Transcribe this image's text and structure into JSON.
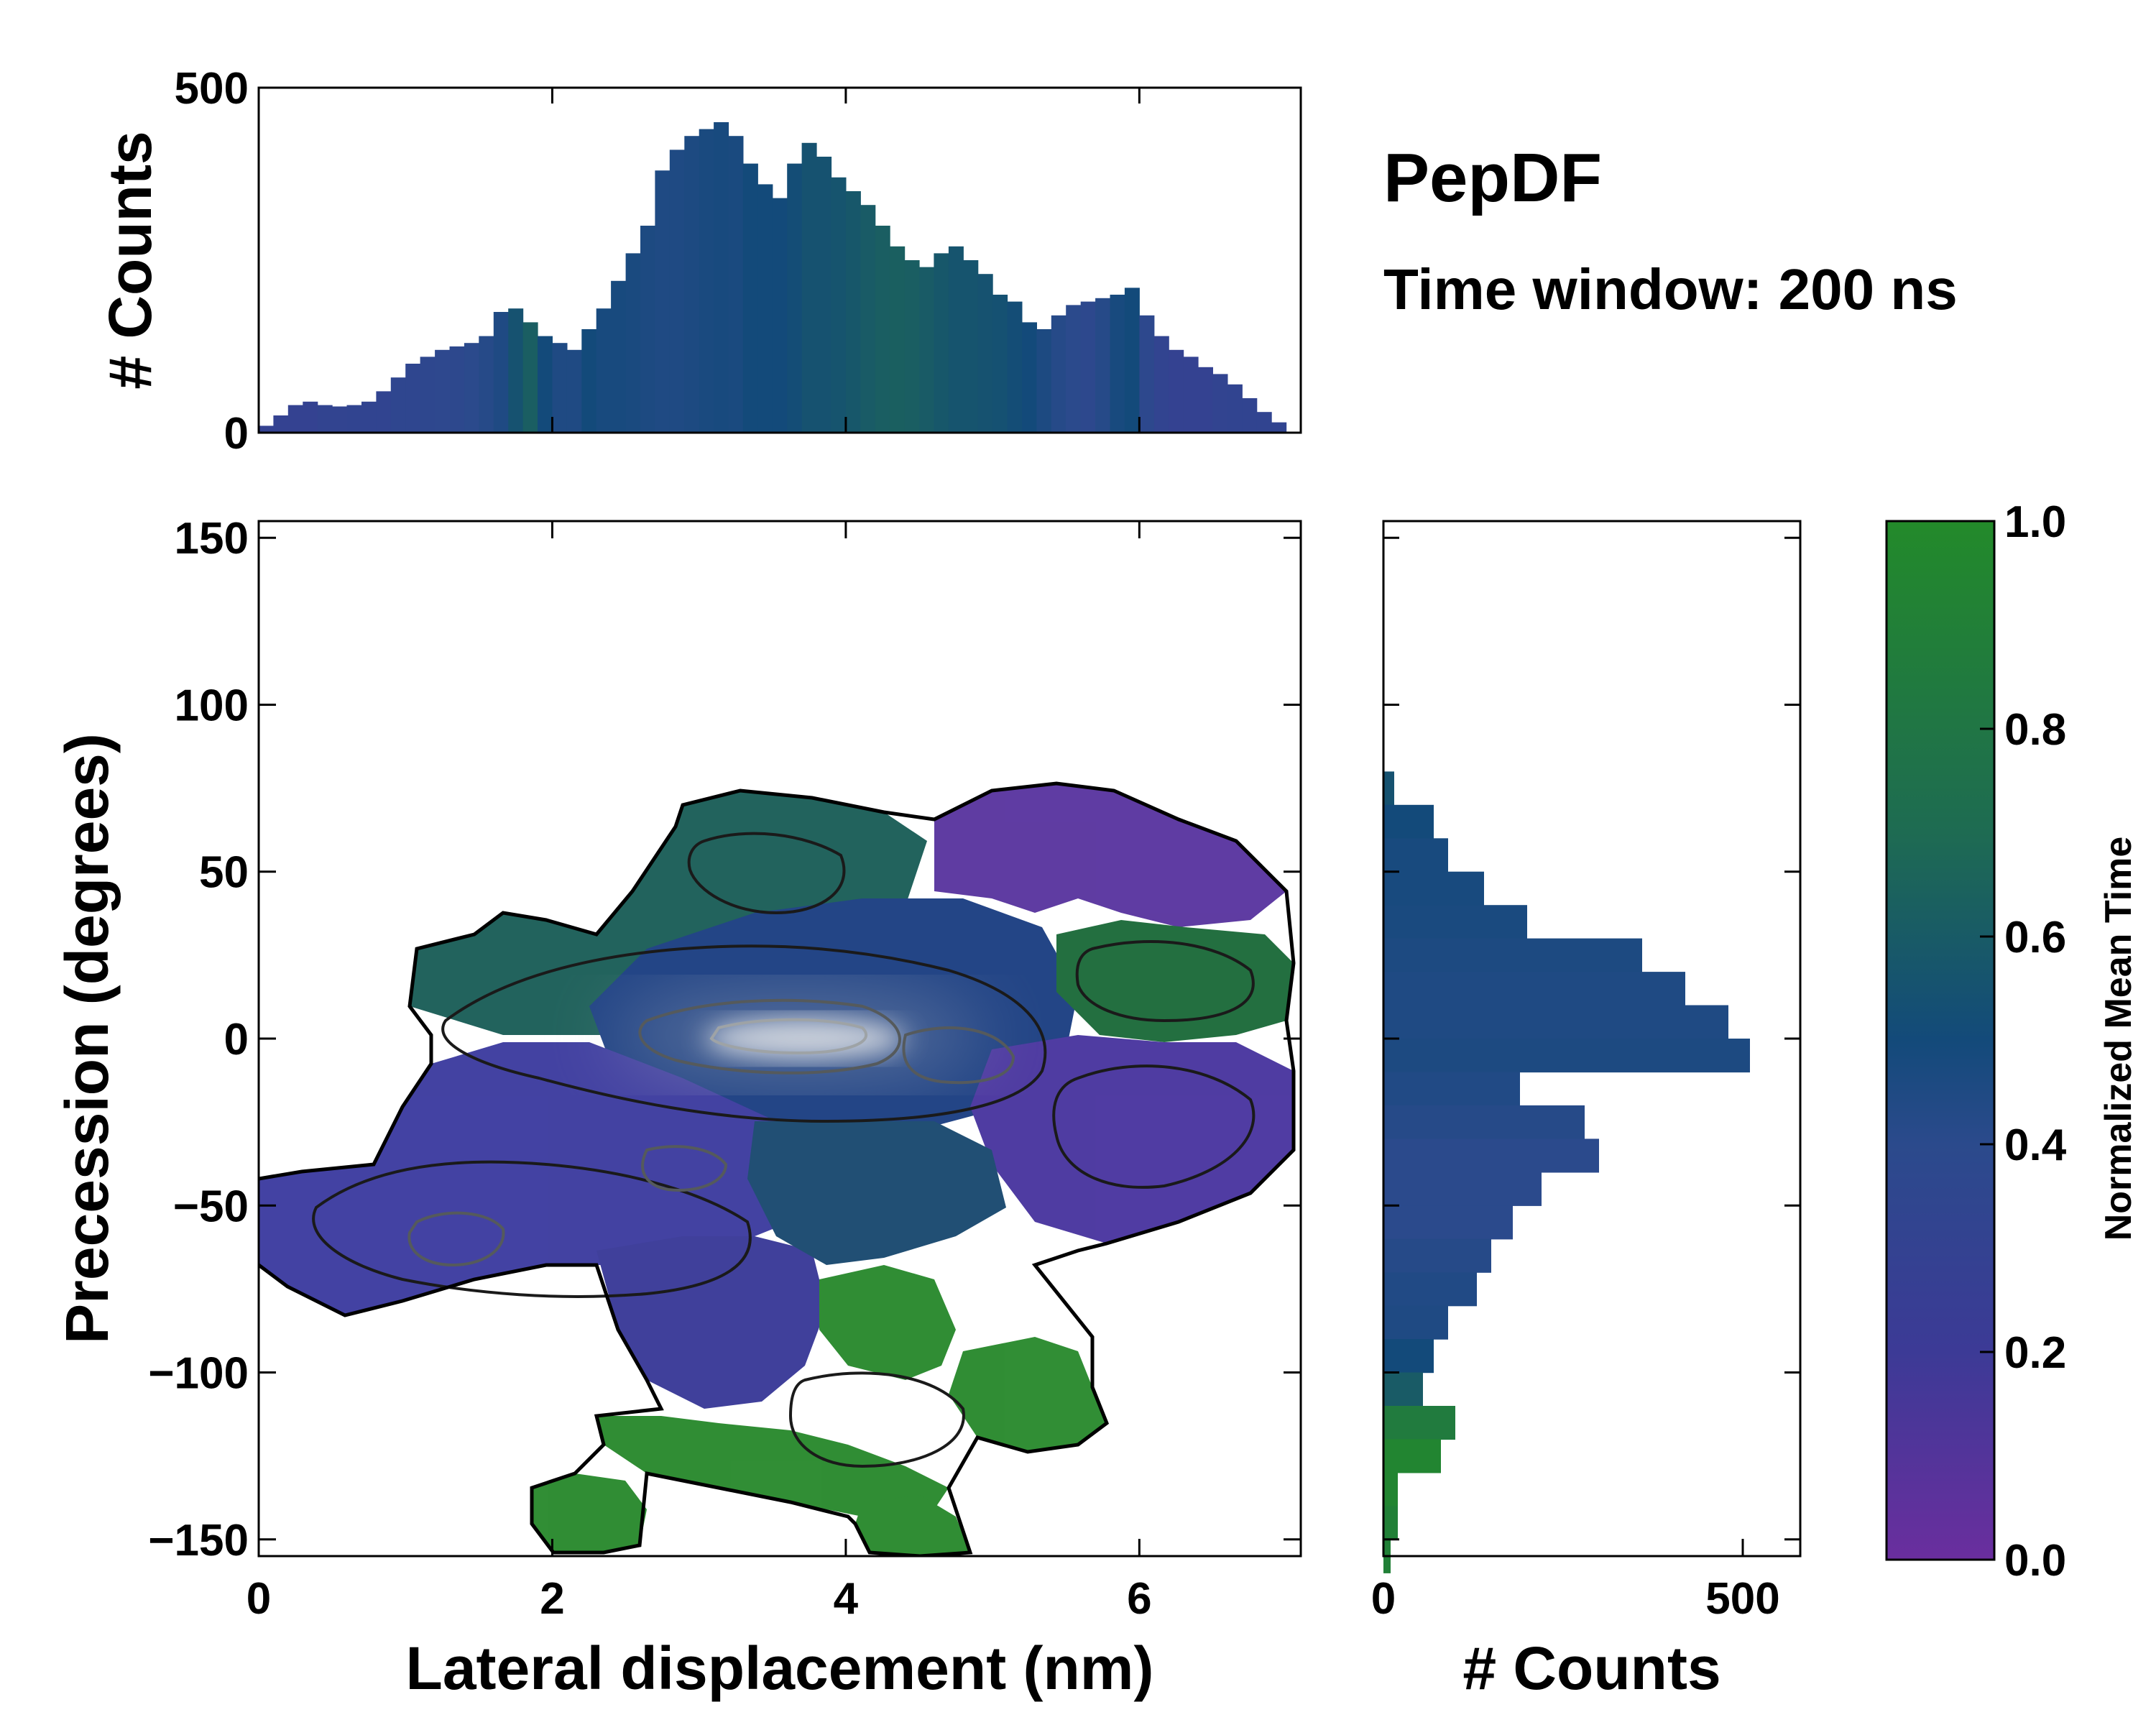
{
  "chart_data": {
    "type": "heatmap",
    "title": "PepDF",
    "subtitle": "Time window: 200 ns",
    "main": {
      "xlabel": "Lateral displacement (nm)",
      "ylabel": "Precession (degrees)",
      "xlim": [
        0,
        7.1
      ],
      "ylim": [
        -155,
        155
      ],
      "xticks": [
        0,
        2,
        4,
        6
      ],
      "xtick_labels": [
        "0",
        "2",
        "4",
        "6"
      ],
      "yticks": [
        150,
        100,
        50,
        0,
        -50,
        -100,
        -150
      ],
      "ytick_labels": [
        "150",
        "100",
        "50",
        "0",
        "−50",
        "−100",
        "−150"
      ],
      "grid": false,
      "regions": [
        {
          "name": "upper-left-green-lobe",
          "x": [
            0.7,
            3.2
          ],
          "y": [
            15,
            65
          ],
          "mean_time": 0.62
        },
        {
          "name": "central-blue-band",
          "x": [
            2.8,
            5.5
          ],
          "y": [
            -25,
            40
          ],
          "mean_time": 0.45
        },
        {
          "name": "upper-right-purple-lobe",
          "x": [
            4.6,
            7.0
          ],
          "y": [
            35,
            75
          ],
          "mean_time": 0.12
        },
        {
          "name": "right-green-patch",
          "x": [
            5.4,
            7.0
          ],
          "y": [
            0,
            35
          ],
          "mean_time": 0.85
        },
        {
          "name": "right-purple-region",
          "x": [
            5.0,
            7.0
          ],
          "y": [
            -60,
            0
          ],
          "mean_time": 0.15
        },
        {
          "name": "left-purple-region",
          "x": [
            0.0,
            3.0
          ],
          "y": [
            -90,
            -20
          ],
          "mean_time": 0.28
        },
        {
          "name": "lower-center-purple",
          "x": [
            2.8,
            4.0
          ],
          "y": [
            -110,
            -40
          ],
          "mean_time": 0.22
        },
        {
          "name": "lower-green-lobes",
          "x": [
            1.8,
            5.8
          ],
          "y": [
            -150,
            -70
          ],
          "mean_time": 0.95
        }
      ],
      "density_peak": {
        "x": 3.6,
        "y": 0
      }
    },
    "top_histogram": {
      "ylabel": "# Counts",
      "ylim": [
        0,
        500
      ],
      "yticks": [
        0,
        500
      ],
      "ytick_labels": [
        "0",
        "500"
      ],
      "x": [
        0.05,
        0.15,
        0.25,
        0.35,
        0.45,
        0.55,
        0.65,
        0.75,
        0.85,
        0.95,
        1.05,
        1.15,
        1.25,
        1.35,
        1.45,
        1.55,
        1.65,
        1.75,
        1.85,
        1.95,
        2.05,
        2.15,
        2.25,
        2.35,
        2.45,
        2.55,
        2.65,
        2.75,
        2.85,
        2.95,
        3.05,
        3.15,
        3.25,
        3.35,
        3.45,
        3.55,
        3.65,
        3.75,
        3.85,
        3.95,
        4.05,
        4.15,
        4.25,
        4.35,
        4.45,
        4.55,
        4.65,
        4.75,
        4.85,
        4.95,
        5.05,
        5.15,
        5.25,
        5.35,
        5.45,
        5.55,
        5.65,
        5.75,
        5.85,
        5.95,
        6.05,
        6.15,
        6.25,
        6.35,
        6.45,
        6.55,
        6.65,
        6.75,
        6.85,
        6.95
      ],
      "values": [
        10,
        25,
        40,
        45,
        40,
        38,
        40,
        45,
        60,
        80,
        100,
        110,
        120,
        125,
        130,
        140,
        175,
        180,
        160,
        140,
        130,
        120,
        150,
        180,
        220,
        260,
        300,
        380,
        410,
        430,
        440,
        450,
        430,
        390,
        360,
        340,
        390,
        420,
        400,
        370,
        350,
        330,
        300,
        270,
        250,
        240,
        260,
        270,
        250,
        230,
        200,
        190,
        160,
        150,
        170,
        185,
        190,
        195,
        200,
        210,
        170,
        140,
        120,
        110,
        95,
        85,
        70,
        50,
        30,
        15
      ],
      "mean_time": [
        0.3,
        0.3,
        0.3,
        0.3,
        0.32,
        0.32,
        0.33,
        0.33,
        0.33,
        0.35,
        0.35,
        0.36,
        0.37,
        0.38,
        0.4,
        0.42,
        0.45,
        0.55,
        0.62,
        0.5,
        0.45,
        0.45,
        0.5,
        0.48,
        0.48,
        0.47,
        0.46,
        0.45,
        0.45,
        0.46,
        0.47,
        0.48,
        0.47,
        0.5,
        0.5,
        0.5,
        0.52,
        0.55,
        0.55,
        0.56,
        0.58,
        0.6,
        0.62,
        0.63,
        0.62,
        0.6,
        0.58,
        0.56,
        0.56,
        0.55,
        0.54,
        0.52,
        0.5,
        0.46,
        0.42,
        0.4,
        0.38,
        0.42,
        0.48,
        0.5,
        0.38,
        0.32,
        0.3,
        0.3,
        0.3,
        0.32,
        0.33,
        0.33,
        0.33,
        0.33
      ]
    },
    "right_histogram": {
      "xlabel": "# Counts",
      "xlim": [
        0,
        580
      ],
      "xticks": [
        0,
        500
      ],
      "xtick_labels": [
        "0",
        "500"
      ],
      "y": [
        75,
        65,
        55,
        45,
        35,
        25,
        15,
        5,
        -5,
        -15,
        -25,
        -35,
        -45,
        -55,
        -65,
        -75,
        -85,
        -95,
        -105,
        -115,
        -125,
        -135,
        -145,
        -155
      ],
      "values": [
        15,
        70,
        90,
        140,
        200,
        360,
        420,
        480,
        510,
        190,
        280,
        300,
        220,
        180,
        150,
        130,
        90,
        70,
        55,
        100,
        80,
        20,
        20,
        10
      ],
      "mean_time": [
        0.55,
        0.5,
        0.48,
        0.48,
        0.47,
        0.46,
        0.45,
        0.45,
        0.46,
        0.44,
        0.42,
        0.4,
        0.4,
        0.4,
        0.42,
        0.44,
        0.45,
        0.5,
        0.6,
        0.85,
        0.95,
        0.95,
        0.9,
        0.9
      ]
    },
    "colorbar": {
      "label": "Normalized Mean Time",
      "min": 0.0,
      "max": 1.0,
      "ticks": [
        0.0,
        0.2,
        0.4,
        0.6,
        0.8,
        1.0
      ],
      "tick_labels": [
        "0.0",
        "0.2",
        "0.4",
        "0.6",
        "0.8",
        "1.0"
      ],
      "colors": [
        "#6a2e9e",
        "#3c3a96",
        "#2b4a8c",
        "#134a7a",
        "#1e6b52",
        "#238a2a"
      ]
    }
  }
}
